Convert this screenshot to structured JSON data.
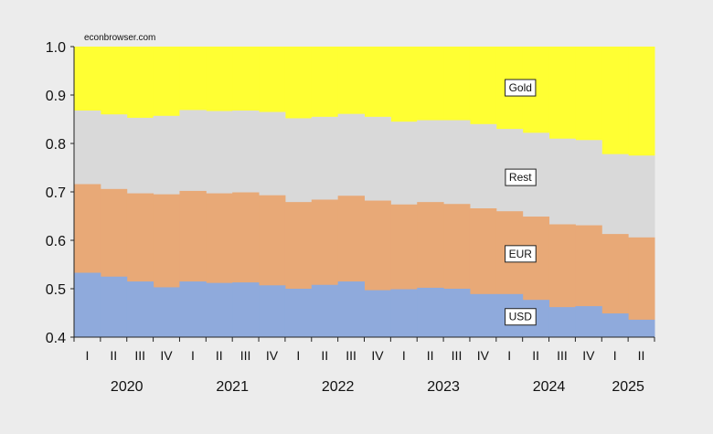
{
  "source_note": "econbrowser.com",
  "chart_data": {
    "type": "area",
    "stacked": true,
    "step": true,
    "title": "",
    "xlabel": "",
    "ylabel": "",
    "ylim": [
      0.4,
      1.0
    ],
    "yticks": [
      "0.4",
      "0.5",
      "0.6",
      "0.7",
      "0.8",
      "0.9",
      "1.0"
    ],
    "quarter_labels": [
      "I",
      "II",
      "III",
      "IV",
      "I",
      "II",
      "III",
      "IV",
      "I",
      "II",
      "III",
      "IV",
      "I",
      "II",
      "III",
      "IV",
      "I",
      "II",
      "III",
      "IV",
      "I",
      "II"
    ],
    "years": [
      {
        "label": "2020",
        "span": 4
      },
      {
        "label": "2021",
        "span": 4
      },
      {
        "label": "2022",
        "span": 4
      },
      {
        "label": "2023",
        "span": 4
      },
      {
        "label": "2024",
        "span": 4
      },
      {
        "label": "2025",
        "span": 2
      }
    ],
    "x": [
      "2020Q1",
      "2020Q2",
      "2020Q3",
      "2020Q4",
      "2021Q1",
      "2021Q2",
      "2021Q3",
      "2021Q4",
      "2022Q1",
      "2022Q2",
      "2022Q3",
      "2022Q4",
      "2023Q1",
      "2023Q2",
      "2023Q3",
      "2023Q4",
      "2024Q1",
      "2024Q2",
      "2024Q3",
      "2024Q4",
      "2025Q1",
      "2025Q2"
    ],
    "grid": false,
    "legend": "inline labels",
    "series": [
      {
        "name": "USD",
        "color": "#8faadc",
        "cumulative": [
          0.533,
          0.525,
          0.515,
          0.503,
          0.515,
          0.512,
          0.513,
          0.507,
          0.5,
          0.508,
          0.515,
          0.497,
          0.499,
          0.502,
          0.5,
          0.489,
          0.489,
          0.477,
          0.462,
          0.464,
          0.449,
          0.436
        ]
      },
      {
        "name": "EUR",
        "color": "#e8a977",
        "cumulative": [
          0.716,
          0.706,
          0.697,
          0.695,
          0.702,
          0.697,
          0.699,
          0.693,
          0.679,
          0.684,
          0.692,
          0.682,
          0.674,
          0.679,
          0.675,
          0.666,
          0.66,
          0.649,
          0.633,
          0.631,
          0.613,
          0.606
        ]
      },
      {
        "name": "Rest",
        "color": "#d9d9d9",
        "cumulative": [
          0.868,
          0.86,
          0.853,
          0.857,
          0.869,
          0.867,
          0.868,
          0.865,
          0.852,
          0.855,
          0.861,
          0.855,
          0.845,
          0.848,
          0.848,
          0.84,
          0.83,
          0.822,
          0.81,
          0.807,
          0.778,
          0.775
        ]
      },
      {
        "name": "Gold",
        "color": "#ffff33",
        "cumulative": [
          1.0,
          1.0,
          1.0,
          1.0,
          1.0,
          1.0,
          1.0,
          1.0,
          1.0,
          1.0,
          1.0,
          1.0,
          1.0,
          1.0,
          1.0,
          1.0,
          1.0,
          1.0,
          1.0,
          1.0,
          1.0,
          1.0
        ]
      }
    ],
    "labels": [
      {
        "text": "Gold",
        "series": "Gold",
        "at_index": 16,
        "value": 0.915
      },
      {
        "text": "Rest",
        "series": "Rest",
        "at_index": 16,
        "value": 0.73
      },
      {
        "text": "EUR",
        "series": "EUR",
        "at_index": 16,
        "value": 0.572
      },
      {
        "text": "USD",
        "series": "USD",
        "at_index": 16,
        "value": 0.442
      }
    ]
  }
}
